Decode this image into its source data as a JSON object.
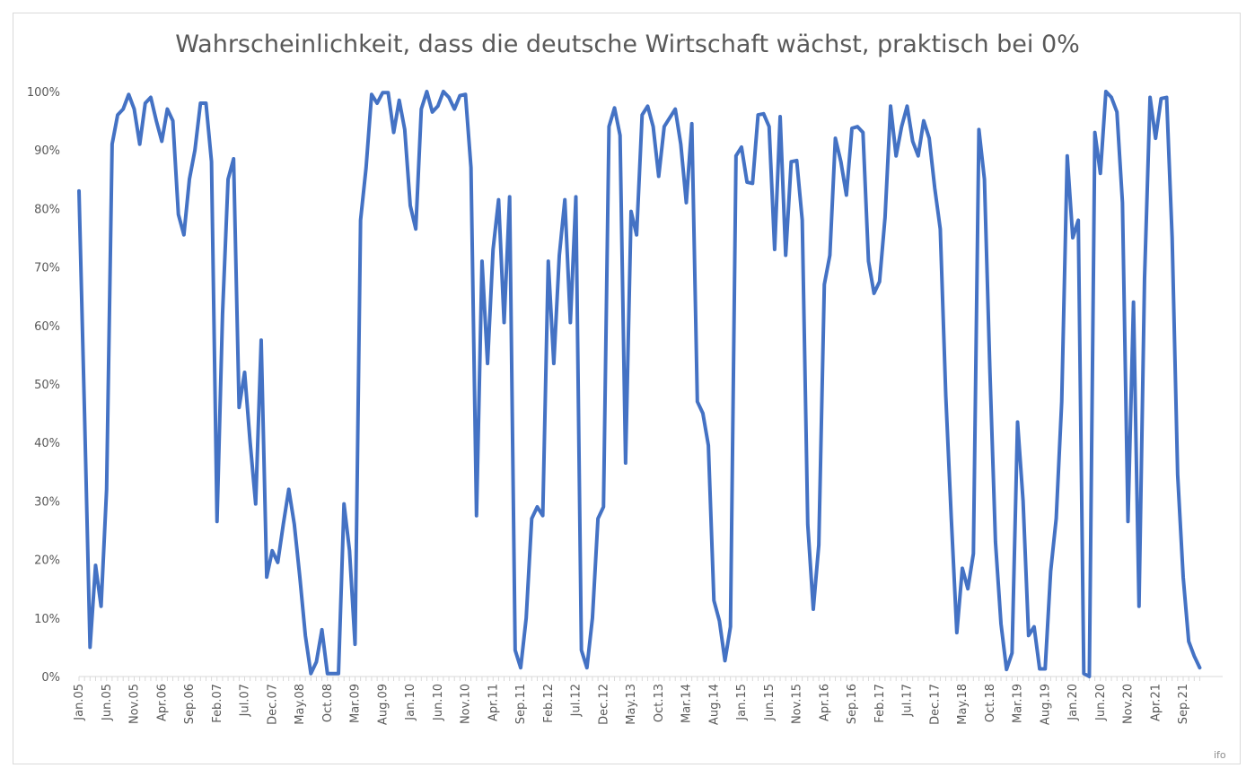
{
  "chart_data": {
    "type": "line",
    "title": "Wahrscheinlichkeit, dass die deutsche Wirtschaft wächst, praktisch bei 0%",
    "source": "ifo",
    "xlabel": "",
    "ylabel": "",
    "ylim": [
      0,
      1
    ],
    "y_ticks": [
      "0%",
      "10%",
      "20%",
      "30%",
      "40%",
      "50%",
      "60%",
      "70%",
      "80%",
      "90%",
      "100%"
    ],
    "x_tick_labels": [
      "Jan.05",
      "Jun.05",
      "Nov.05",
      "Apr.06",
      "Sep.06",
      "Feb.07",
      "Jul.07",
      "Dec.07",
      "May.08",
      "Oct.08",
      "Mar.09",
      "Aug.09",
      "Jan.10",
      "Jun.10",
      "Nov.10",
      "Apr.11",
      "Sep.11",
      "Feb.12",
      "Jul.12",
      "Dec.12",
      "May.13",
      "Oct.13",
      "Mar.14",
      "Aug.14",
      "Jan.15",
      "Jun.15",
      "Nov.15",
      "Apr.16",
      "Sep.16",
      "Feb.17",
      "Jul.17",
      "Dec.17",
      "May.18",
      "Oct.18",
      "Mar.19",
      "Aug.19",
      "Jan.20",
      "Jun.20",
      "Nov.20",
      "Apr.21",
      "Sep.21"
    ],
    "grid": false,
    "legend": "none",
    "color": "#4472c4",
    "start_month": "Jan.05",
    "series": [
      {
        "values": [
          0.83,
          0.45,
          0.05,
          0.19,
          0.12,
          0.32,
          0.91,
          0.96,
          0.97,
          0.995,
          0.97,
          0.91,
          0.98,
          0.99,
          0.95,
          0.915,
          0.97,
          0.95,
          0.79,
          0.755,
          0.85,
          0.9,
          0.98,
          0.98,
          0.88,
          0.265,
          0.62,
          0.85,
          0.885,
          0.46,
          0.52,
          0.4,
          0.295,
          0.575,
          0.17,
          0.215,
          0.195,
          0.26,
          0.32,
          0.26,
          0.17,
          0.07,
          0.005,
          0.025,
          0.08,
          0.005,
          0.005,
          0.005,
          0.295,
          0.215,
          0.055,
          0.78,
          0.87,
          0.995,
          0.98,
          0.998,
          0.998,
          0.93,
          0.985,
          0.935,
          0.805,
          0.765,
          0.97,
          1.0,
          0.965,
          0.975,
          1.0,
          0.99,
          0.97,
          0.993,
          0.995,
          0.87,
          0.275,
          0.71,
          0.535,
          0.73,
          0.815,
          0.605,
          0.82,
          0.045,
          0.015,
          0.1,
          0.27,
          0.29,
          0.275,
          0.71,
          0.535,
          0.72,
          0.815,
          0.605,
          0.82,
          0.045,
          0.015,
          0.1,
          0.27,
          0.29,
          0.94,
          0.972,
          0.925,
          0.365,
          0.795,
          0.755,
          0.96,
          0.975,
          0.94,
          0.855,
          0.94,
          0.955,
          0.97,
          0.91,
          0.81,
          0.945,
          0.47,
          0.45,
          0.395,
          0.13,
          0.095,
          0.027,
          0.085,
          0.89,
          0.905,
          0.845,
          0.843,
          0.96,
          0.962,
          0.94,
          0.73,
          0.957,
          0.72,
          0.88,
          0.882,
          0.78,
          0.26,
          0.115,
          0.225,
          0.67,
          0.72,
          0.92,
          0.88,
          0.823,
          0.937,
          0.94,
          0.93,
          0.71,
          0.655,
          0.675,
          0.785,
          0.975,
          0.89,
          0.94,
          0.975,
          0.915,
          0.89,
          0.95,
          0.92,
          0.835,
          0.765,
          0.48,
          0.27,
          0.075,
          0.185,
          0.15,
          0.21,
          0.935,
          0.85,
          0.52,
          0.23,
          0.09,
          0.012,
          0.04,
          0.435,
          0.3,
          0.07,
          0.085,
          0.013,
          0.013,
          0.18,
          0.27,
          0.47,
          0.89,
          0.75,
          0.78,
          0.005,
          0.0,
          0.93,
          0.86,
          1.0,
          0.99,
          0.965,
          0.81,
          0.265,
          0.64,
          0.12,
          0.68,
          0.99,
          0.92,
          0.988,
          0.99,
          0.75,
          0.345,
          0.17,
          0.06,
          0.035,
          0.015
        ]
      }
    ]
  }
}
